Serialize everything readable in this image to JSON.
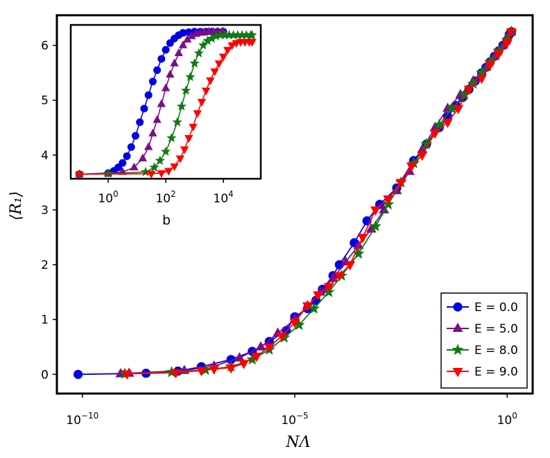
{
  "chart_data": [
    {
      "id": "main",
      "type": "line",
      "title": "",
      "xlabel": "NΛ",
      "ylabel": "⟨R₁⟩",
      "xscale": "log10",
      "xlim_log10": [
        -10.6,
        0.6
      ],
      "ylim": [
        -0.35,
        6.55
      ],
      "xticks": [
        {
          "value": -10,
          "label": "10",
          "exp": "−10"
        },
        {
          "value": -5,
          "label": "10",
          "exp": "−5"
        },
        {
          "value": 0,
          "label": "10",
          "exp": "0"
        }
      ],
      "yticks": [
        0,
        1,
        2,
        3,
        4,
        5,
        6
      ],
      "grid": false,
      "legend": "bottom-right",
      "series": [
        {
          "name": "E = 0.0",
          "color": "#0000e6",
          "marker": "circle",
          "x_log10": [
            -10.1,
            -8.5,
            -7.75,
            -7.2,
            -6.5,
            -6.0,
            -5.6,
            -5.2,
            -5.0,
            -4.7,
            -4.5,
            -4.35,
            -4.1,
            -3.95,
            -3.6,
            -3.3,
            -3.0,
            -2.6,
            -2.2,
            -1.9,
            -1.6,
            -1.4,
            -1.2,
            -1.05,
            -0.9,
            -0.75,
            -0.6,
            -0.5,
            -0.4,
            -0.3,
            -0.2,
            -0.1,
            0.0,
            0.05,
            0.1
          ],
          "y": [
            0.0,
            0.02,
            0.06,
            0.14,
            0.27,
            0.42,
            0.6,
            0.8,
            1.05,
            1.2,
            1.35,
            1.55,
            1.8,
            2.0,
            2.4,
            2.8,
            3.1,
            3.4,
            3.9,
            4.2,
            4.5,
            4.7,
            4.9,
            5.05,
            5.2,
            5.35,
            5.5,
            5.6,
            5.7,
            5.8,
            5.9,
            6.0,
            6.1,
            6.2,
            6.25
          ]
        },
        {
          "name": "E = 5.0",
          "color": "#7b0f87",
          "marker": "triangle-up",
          "x_log10": [
            -9.1,
            -8.9,
            -7.6,
            -6.9,
            -6.3,
            -5.8,
            -5.4,
            -5.0,
            -4.7,
            -4.4,
            -4.1,
            -3.8,
            -3.5,
            -3.2,
            -2.9,
            -2.6,
            -2.3,
            -2.0,
            -1.7,
            -1.4,
            -1.1,
            -0.8,
            -0.5,
            -0.3,
            -0.1,
            0.0,
            0.1
          ],
          "y": [
            0.01,
            0.02,
            0.07,
            0.15,
            0.3,
            0.5,
            0.75,
            1.0,
            1.25,
            1.5,
            1.75,
            2.05,
            2.35,
            2.65,
            3.0,
            3.35,
            3.7,
            4.1,
            4.5,
            4.85,
            5.1,
            5.35,
            5.6,
            5.8,
            6.0,
            6.15,
            6.25
          ]
        },
        {
          "name": "E = 8.0",
          "color": "#0e7a12",
          "marker": "star",
          "x_log10": [
            -9.0,
            -7.9,
            -7.1,
            -6.5,
            -6.0,
            -5.6,
            -5.25,
            -4.9,
            -4.55,
            -4.2,
            -3.9,
            -3.5,
            -3.1,
            -2.8,
            -2.5,
            -2.2,
            -1.9,
            -1.6,
            -1.3,
            -1.0,
            -0.8,
            -0.6,
            -0.4,
            -0.2,
            0.0,
            0.1
          ],
          "y": [
            0.01,
            0.04,
            0.08,
            0.14,
            0.27,
            0.45,
            0.67,
            0.9,
            1.2,
            1.5,
            1.8,
            2.2,
            2.7,
            3.1,
            3.5,
            3.85,
            4.2,
            4.55,
            4.85,
            5.1,
            5.3,
            5.5,
            5.7,
            5.9,
            6.1,
            6.25
          ]
        },
        {
          "name": "E = 9.0",
          "color": "#ff0000",
          "marker": "triangle-down",
          "x_log10": [
            -8.95,
            -7.8,
            -7.2,
            -6.9,
            -6.5,
            -6.2,
            -5.9,
            -5.6,
            -5.3,
            -5.0,
            -4.7,
            -4.45,
            -4.2,
            -3.95,
            -3.7,
            -3.4,
            -3.1,
            -2.8,
            -2.5,
            -2.25,
            -2.0,
            -1.7,
            -1.4,
            -1.15,
            -0.9,
            -0.6,
            -0.4,
            -0.2,
            0.0,
            0.1
          ],
          "y": [
            0.01,
            0.03,
            0.07,
            0.1,
            0.12,
            0.2,
            0.33,
            0.5,
            0.7,
            0.95,
            1.25,
            1.45,
            1.6,
            1.8,
            2.0,
            2.5,
            3.0,
            3.2,
            3.5,
            3.8,
            4.0,
            4.4,
            4.6,
            4.85,
            5.2,
            5.4,
            5.65,
            5.85,
            6.05,
            6.25
          ]
        }
      ]
    },
    {
      "id": "inset",
      "type": "line",
      "title": "",
      "xlabel": "b",
      "ylabel": "",
      "xscale": "log10",
      "xlim_log10": [
        -1.3,
        5.3
      ],
      "ylim": [
        -0.2,
        6.6
      ],
      "xticks": [
        {
          "value": 0,
          "label": "10",
          "exp": "0"
        },
        {
          "value": 2,
          "label": "10",
          "exp": "2"
        },
        {
          "value": 4,
          "label": "10",
          "exp": "4"
        }
      ],
      "grid": false,
      "series": [
        {
          "name": "E = 0.0",
          "color": "#0000e6",
          "marker": "circle",
          "x_log10": [
            -1.0,
            0.0,
            0.2,
            0.35,
            0.5,
            0.65,
            0.8,
            0.95,
            1.1,
            1.25,
            1.4,
            1.55,
            1.7,
            1.85,
            2.0,
            2.15,
            2.3,
            2.45,
            2.6,
            2.8,
            3.0,
            3.2,
            3.4,
            3.6,
            3.8,
            4.0
          ],
          "y": [
            0.0,
            0.05,
            0.15,
            0.3,
            0.5,
            0.8,
            1.2,
            1.7,
            2.3,
            2.9,
            3.5,
            4.1,
            4.6,
            5.1,
            5.5,
            5.8,
            6.0,
            6.15,
            6.25,
            6.28,
            6.3,
            6.3,
            6.3,
            6.3,
            6.3,
            6.3
          ]
        },
        {
          "name": "E = 5.0",
          "color": "#7b0f87",
          "marker": "triangle-up",
          "x_log10": [
            -1.0,
            0.0,
            0.5,
            0.9,
            1.2,
            1.4,
            1.55,
            1.7,
            1.85,
            2.0,
            2.15,
            2.3,
            2.45,
            2.6,
            2.75,
            2.9,
            3.05,
            3.2,
            3.35,
            3.5,
            3.65,
            3.8,
            3.95,
            4.0
          ],
          "y": [
            0.0,
            0.03,
            0.1,
            0.3,
            0.7,
            1.2,
            1.8,
            2.4,
            3.1,
            3.8,
            4.4,
            4.9,
            5.35,
            5.7,
            5.95,
            6.1,
            6.2,
            6.25,
            6.28,
            6.3,
            6.3,
            6.3,
            6.3,
            6.3
          ]
        },
        {
          "name": "E = 8.0",
          "color": "#0e7a12",
          "marker": "star",
          "x_log10": [
            -1.0,
            0.0,
            1.3,
            1.6,
            1.8,
            2.0,
            2.2,
            2.4,
            2.55,
            2.7,
            2.85,
            3.0,
            3.15,
            3.3,
            3.45,
            3.6,
            3.75,
            3.9,
            4.05,
            4.2,
            4.35,
            4.5,
            4.65,
            4.8,
            4.95,
            5.0
          ],
          "y": [
            0.0,
            0.03,
            0.1,
            0.3,
            0.6,
            1.0,
            1.6,
            2.3,
            3.0,
            3.7,
            4.3,
            4.9,
            5.35,
            5.7,
            5.9,
            6.0,
            6.1,
            6.15,
            6.15,
            6.15,
            6.15,
            6.15,
            6.15,
            6.15,
            6.15,
            6.15
          ]
        },
        {
          "name": "E = 9.0",
          "color": "#ff0000",
          "marker": "triangle-down",
          "x_log10": [
            -1.0,
            1.5,
            1.85,
            2.1,
            2.3,
            2.5,
            2.65,
            2.8,
            2.95,
            3.1,
            3.25,
            3.4,
            3.55,
            3.7,
            3.85,
            4.0,
            4.15,
            4.3,
            4.45,
            4.6,
            4.75,
            4.9,
            5.0
          ],
          "y": [
            0.0,
            0.02,
            0.05,
            0.15,
            0.35,
            0.7,
            1.1,
            1.6,
            2.1,
            2.7,
            3.2,
            3.7,
            4.15,
            4.55,
            4.9,
            5.2,
            5.5,
            5.7,
            5.8,
            5.85,
            5.85,
            5.85,
            5.85
          ]
        }
      ]
    }
  ]
}
